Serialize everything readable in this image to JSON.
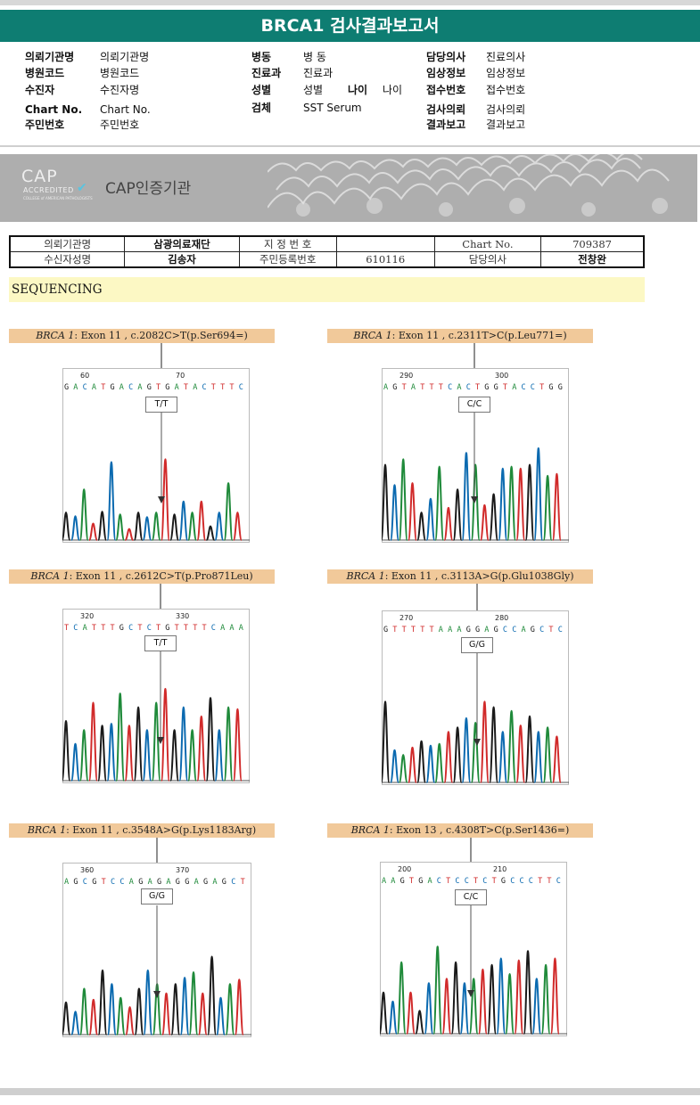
{
  "report": {
    "title": "BRCA1 검사결과보고서"
  },
  "header_info": [
    {
      "label": "의뢰기관명",
      "value": "의뢰기관명"
    },
    {
      "label": "병원코드",
      "value": "병원코드"
    },
    {
      "label": "수진자",
      "value": "수진자명"
    },
    {
      "label": "Chart No.",
      "value": "Chart No."
    },
    {
      "label": "주민번호",
      "value": "주민번호"
    },
    {
      "label": "병동",
      "value": "병 동"
    },
    {
      "label": "진료과",
      "value": "진료과"
    },
    {
      "label": "성별",
      "value": "성별"
    },
    {
      "label": "나이",
      "value": "나이"
    },
    {
      "label": "검체",
      "value": "SST Serum"
    },
    {
      "label": "담당의사",
      "value": "진료의사"
    },
    {
      "label": "임상정보",
      "value": "임상정보"
    },
    {
      "label": "접수번호",
      "value": "접수번호"
    },
    {
      "label": "검사의뢰",
      "value": "검사의뢰"
    },
    {
      "label": "결과보고",
      "value": "결과보고"
    }
  ],
  "cap": {
    "logo_big": "CAP",
    "logo_accredited": "ACCREDITED",
    "logo_small": "COLLEGE of AMERICAN PATHOLOGISTS",
    "title": "CAP인증기관"
  },
  "patient_table": {
    "row1": [
      "의뢰기관명",
      "삼광의료재단",
      "지 정 번 호",
      "",
      "Chart No.",
      "709387"
    ],
    "row2": [
      "수신자성명",
      "김송자",
      "주민등록번호",
      "610116",
      "담당의사",
      "전창완"
    ]
  },
  "section_title": "SEQUENCING",
  "variants": [
    {
      "gene": "BRCA 1",
      "desc": ": Exon 11 , c.2082C>T(p.Ser694=)",
      "tick_left": "60",
      "tick_right": "70",
      "bases": "GACATGACAGTGATACTTTC",
      "genotype": "T/T",
      "colors": [
        "#1a1a1a",
        "#0b6ab0",
        "#1f8a3a",
        "#d12b2b"
      ],
      "peaks": [
        [
          0,
          0.05,
          0.3
        ],
        [
          0.05,
          0.09,
          0.26
        ],
        [
          0.1,
          0.1,
          0.55
        ],
        [
          0.15,
          0.12,
          0.18
        ],
        [
          0.2,
          0.12,
          0.31
        ],
        [
          0.25,
          0.14,
          0.85
        ],
        [
          0.3,
          0.16,
          0.28
        ],
        [
          0.35,
          0.17,
          0.12
        ],
        [
          0.4,
          0.18,
          0.3
        ],
        [
          0.45,
          0.2,
          0.25
        ],
        [
          0.5,
          0.22,
          0.3
        ],
        [
          0.55,
          0.23,
          0.88
        ],
        [
          0.6,
          0.24,
          0.28
        ],
        [
          0.65,
          0.25,
          0.42
        ],
        [
          0.7,
          0.27,
          0.3
        ],
        [
          0.75,
          0.28,
          0.42
        ],
        [
          0.8,
          0.29,
          0.15
        ],
        [
          0.85,
          0.31,
          0.3
        ],
        [
          0.9,
          0.33,
          0.62
        ],
        [
          0.95,
          0.35,
          0.3
        ]
      ]
    },
    {
      "gene": "BRCA 1",
      "desc": ": Exon 11 , c.2311T>C(p.Leu771=)",
      "tick_left": "290",
      "tick_right": "300",
      "bases": "AGTATTTCACTGGTACCTGG",
      "genotype": "C/C",
      "colors": [
        "#1a1a1a",
        "#0b6ab0",
        "#1f8a3a",
        "#d12b2b"
      ],
      "peaks": [
        [
          0,
          0.05,
          0.82
        ],
        [
          0.05,
          0.09,
          0.6
        ],
        [
          0.1,
          0.1,
          0.88
        ],
        [
          0.15,
          0.12,
          0.62
        ],
        [
          0.2,
          0.12,
          0.3
        ],
        [
          0.25,
          0.14,
          0.45
        ],
        [
          0.3,
          0.16,
          0.8
        ],
        [
          0.35,
          0.17,
          0.35
        ],
        [
          0.4,
          0.18,
          0.55
        ],
        [
          0.45,
          0.2,
          0.95
        ],
        [
          0.5,
          0.22,
          0.82
        ],
        [
          0.55,
          0.23,
          0.38
        ],
        [
          0.6,
          0.24,
          0.5
        ],
        [
          0.65,
          0.25,
          0.78
        ],
        [
          0.7,
          0.27,
          0.8
        ],
        [
          0.75,
          0.28,
          0.78
        ],
        [
          0.8,
          0.29,
          0.82
        ],
        [
          0.85,
          0.31,
          1.0
        ],
        [
          0.9,
          0.33,
          0.7
        ],
        [
          0.95,
          0.35,
          0.72
        ]
      ]
    },
    {
      "gene": "BRCA 1",
      "desc": ": Exon 11 , c.2612C>T(p.Pro871Leu)",
      "tick_left": "320",
      "tick_right": "330",
      "bases": "TCATTTGCTCTGTTTTCAAA",
      "genotype": "T/T",
      "colors": [
        "#1a1a1a",
        "#0b6ab0",
        "#1f8a3a",
        "#d12b2b"
      ],
      "peaks": [
        [
          0,
          0.05,
          0.65
        ],
        [
          0.05,
          0.09,
          0.4
        ],
        [
          0.1,
          0.1,
          0.55
        ],
        [
          0.15,
          0.12,
          0.85
        ],
        [
          0.2,
          0.12,
          0.6
        ],
        [
          0.25,
          0.14,
          0.62
        ],
        [
          0.3,
          0.16,
          0.95
        ],
        [
          0.35,
          0.17,
          0.6
        ],
        [
          0.4,
          0.18,
          0.8
        ],
        [
          0.45,
          0.2,
          0.55
        ],
        [
          0.5,
          0.22,
          0.85
        ],
        [
          0.55,
          0.23,
          1.0
        ],
        [
          0.6,
          0.24,
          0.55
        ],
        [
          0.65,
          0.25,
          0.8
        ],
        [
          0.7,
          0.27,
          0.55
        ],
        [
          0.75,
          0.28,
          0.7
        ],
        [
          0.8,
          0.29,
          0.9
        ],
        [
          0.85,
          0.31,
          0.55
        ],
        [
          0.9,
          0.33,
          0.8
        ],
        [
          0.95,
          0.35,
          0.78
        ]
      ]
    },
    {
      "gene": "BRCA 1",
      "desc": ": Exon 11 , c.3113A>G(p.Glu1038Gly)",
      "tick_left": "270",
      "tick_right": "280",
      "bases": "GTTTTTAAAGGAGCCAGCTC",
      "genotype": "G/G",
      "colors": [
        "#1a1a1a",
        "#0b6ab0",
        "#1f8a3a",
        "#d12b2b"
      ],
      "peaks": [
        [
          0,
          0.05,
          0.88
        ],
        [
          0.05,
          0.09,
          0.35
        ],
        [
          0.1,
          0.1,
          0.3
        ],
        [
          0.15,
          0.12,
          0.38
        ],
        [
          0.2,
          0.12,
          0.45
        ],
        [
          0.25,
          0.14,
          0.4
        ],
        [
          0.3,
          0.16,
          0.42
        ],
        [
          0.35,
          0.17,
          0.55
        ],
        [
          0.4,
          0.18,
          0.6
        ],
        [
          0.45,
          0.2,
          0.7
        ],
        [
          0.5,
          0.22,
          0.65
        ],
        [
          0.55,
          0.23,
          0.88
        ],
        [
          0.6,
          0.24,
          0.82
        ],
        [
          0.65,
          0.25,
          0.55
        ],
        [
          0.7,
          0.27,
          0.78
        ],
        [
          0.75,
          0.28,
          0.62
        ],
        [
          0.8,
          0.29,
          0.72
        ],
        [
          0.85,
          0.31,
          0.55
        ],
        [
          0.9,
          0.33,
          0.6
        ],
        [
          0.95,
          0.35,
          0.5
        ]
      ]
    },
    {
      "gene": "BRCA 1",
      "desc": ": Exon 11 , c.3548A>G(p.Lys1183Arg)",
      "tick_left": "360",
      "tick_right": "370",
      "bases": "AGCGTCCAGAGAGGAGAGCT",
      "genotype": "G/G",
      "colors": [
        "#1a1a1a",
        "#0b6ab0",
        "#1f8a3a",
        "#d12b2b"
      ],
      "peaks": [
        [
          0,
          0.05,
          0.35
        ],
        [
          0.05,
          0.09,
          0.25
        ],
        [
          0.1,
          0.1,
          0.5
        ],
        [
          0.15,
          0.12,
          0.38
        ],
        [
          0.2,
          0.12,
          0.7
        ],
        [
          0.25,
          0.14,
          0.55
        ],
        [
          0.3,
          0.16,
          0.4
        ],
        [
          0.35,
          0.17,
          0.3
        ],
        [
          0.4,
          0.18,
          0.5
        ],
        [
          0.45,
          0.2,
          0.7
        ],
        [
          0.5,
          0.22,
          0.55
        ],
        [
          0.55,
          0.23,
          0.45
        ],
        [
          0.6,
          0.24,
          0.55
        ],
        [
          0.65,
          0.25,
          0.62
        ],
        [
          0.7,
          0.27,
          0.68
        ],
        [
          0.75,
          0.28,
          0.45
        ],
        [
          0.8,
          0.29,
          0.85
        ],
        [
          0.85,
          0.31,
          0.4
        ],
        [
          0.9,
          0.33,
          0.55
        ],
        [
          0.95,
          0.35,
          0.6
        ]
      ]
    },
    {
      "gene": "BRCA 1",
      "desc": ": Exon 13 , c.4308T>C(p.Ser1436=)",
      "tick_left": "200",
      "tick_right": "210",
      "bases": "AAGTGACTCCTCTGCCCTTC",
      "genotype": "C/C",
      "colors": [
        "#1a1a1a",
        "#0b6ab0",
        "#1f8a3a",
        "#d12b2b"
      ],
      "peaks": [
        [
          0,
          0.05,
          0.45
        ],
        [
          0.05,
          0.09,
          0.35
        ],
        [
          0.1,
          0.1,
          0.78
        ],
        [
          0.15,
          0.12,
          0.45
        ],
        [
          0.2,
          0.12,
          0.25
        ],
        [
          0.25,
          0.14,
          0.55
        ],
        [
          0.3,
          0.16,
          0.95
        ],
        [
          0.35,
          0.17,
          0.6
        ],
        [
          0.4,
          0.18,
          0.78
        ],
        [
          0.45,
          0.2,
          0.55
        ],
        [
          0.5,
          0.22,
          0.6
        ],
        [
          0.55,
          0.23,
          0.7
        ],
        [
          0.6,
          0.24,
          0.75
        ],
        [
          0.65,
          0.25,
          0.82
        ],
        [
          0.7,
          0.27,
          0.65
        ],
        [
          0.75,
          0.28,
          0.8
        ],
        [
          0.8,
          0.29,
          0.9
        ],
        [
          0.85,
          0.31,
          0.6
        ],
        [
          0.9,
          0.33,
          0.75
        ],
        [
          0.95,
          0.35,
          0.82
        ]
      ]
    }
  ]
}
